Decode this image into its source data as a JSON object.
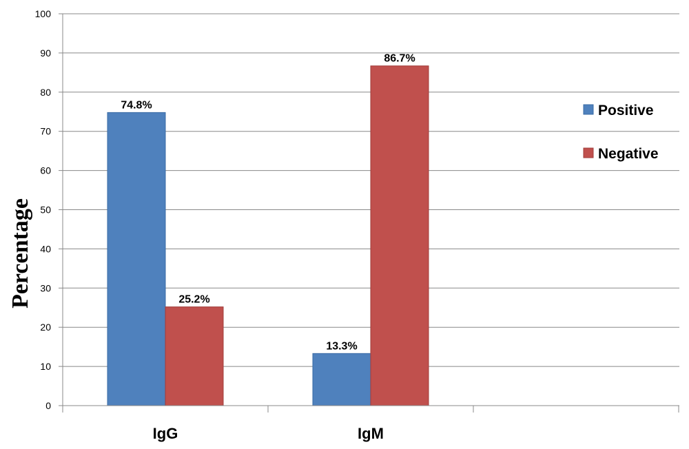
{
  "chart_data": {
    "type": "bar",
    "categories": [
      "IgG",
      "IgM"
    ],
    "series": [
      {
        "name": "Positive",
        "values": [
          74.8,
          13.3
        ],
        "labels": [
          "74.8%",
          "13.3%"
        ],
        "color": "#4F81BD"
      },
      {
        "name": "Negative",
        "values": [
          25.2,
          86.7
        ],
        "labels": [
          "25.2%",
          "86.7%"
        ],
        "color": "#C0504D"
      }
    ],
    "title": "",
    "xlabel": "",
    "ylabel": "Percentage",
    "ylim": [
      0,
      100
    ],
    "yticks": [
      "0",
      "10",
      "20",
      "30",
      "40",
      "50",
      "60",
      "70",
      "80",
      "90",
      "100"
    ],
    "grid": "horizontal",
    "legend_position": "right"
  }
}
